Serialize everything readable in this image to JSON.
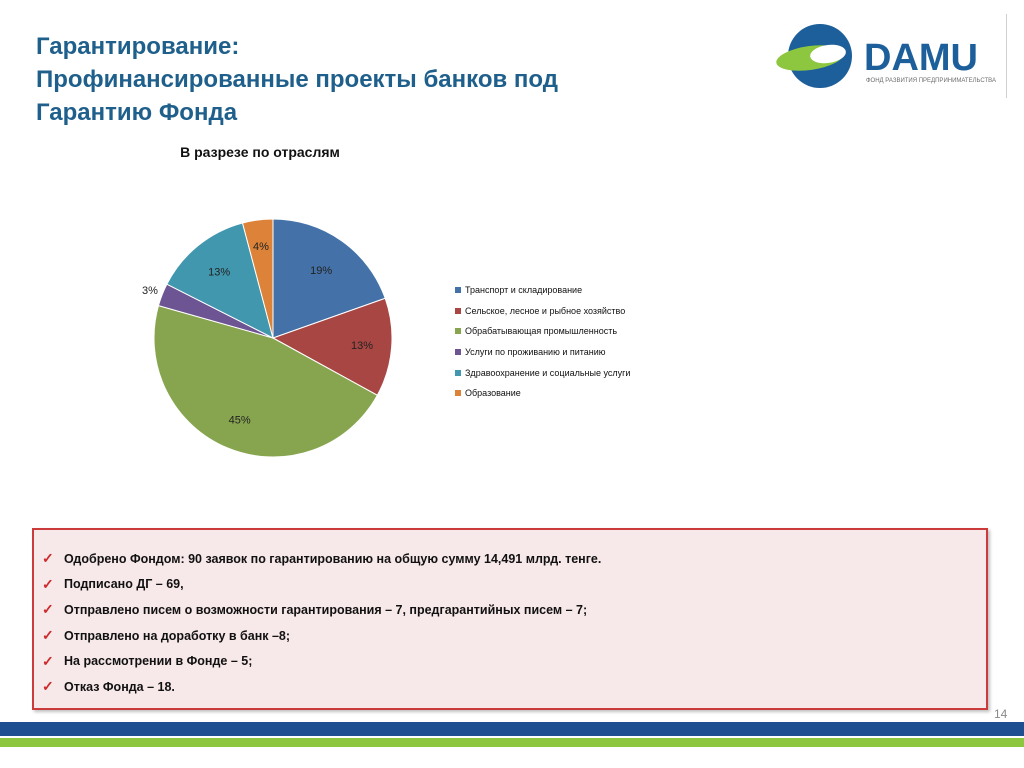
{
  "slide": {
    "title_lines": [
      "Гарантирование:",
      "Профинансированные проекты банков под",
      "Гарантию Фонда"
    ],
    "page_number": "14"
  },
  "logo": {
    "brand": "DAMU",
    "tagline": "ФОНД РАЗВИТИЯ ПРЕДПРИНИМАТЕЛЬСТВА",
    "colors": {
      "blue": "#1d5f9b",
      "green": "#8dc63f"
    }
  },
  "chart_data": {
    "type": "pie",
    "title": "В разрезе по отраслям",
    "categories": [
      "Транспорт и складирование",
      "Сельское, лесное и рыбное хозяйство",
      "Обрабатывающая промышленность",
      "Услуги по проживанию и питанию",
      "Здравоохранение и социальные услуги",
      "Образование"
    ],
    "values": [
      19,
      13,
      45,
      3,
      13,
      4
    ],
    "labels": [
      "19%",
      "13%",
      "45%",
      "3%",
      "13%",
      "4%"
    ],
    "colors": [
      "#4472a8",
      "#a84643",
      "#87a54f",
      "#6d5493",
      "#4197ae",
      "#dc8339"
    ],
    "legend_position": "right"
  },
  "info_box": {
    "items": [
      "Одобрено Фондом: 90 заявок по гарантированию на общую сумму  14,491 млрд. тенге.",
      "Подписано ДГ – 69,",
      "Отправлено писем о возможности гарантирования – 7, предгарантийных писем – 7;",
      "Отправлено на доработку в банк –8;",
      "На рассмотрении в Фонде – 5;",
      "Отказ Фонда –  18."
    ],
    "bullet_icon": "check-mark-icon",
    "border_color": "#cc3b3b",
    "background_color": "#f7e8e9"
  },
  "footer": {
    "band_colors": [
      "#1d4f91",
      "#8dc63f"
    ]
  }
}
